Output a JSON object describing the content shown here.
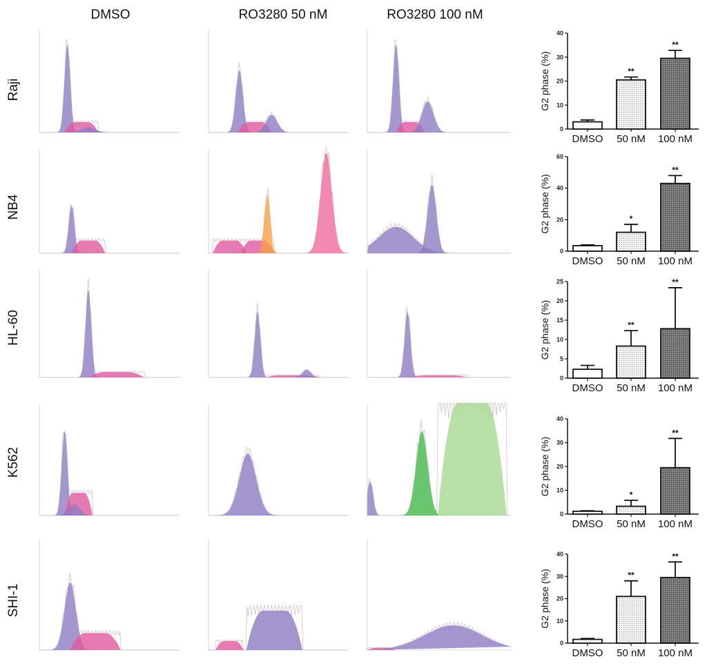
{
  "column_headers": [
    "DMSO",
    "RO3280 50 nM",
    "RO3280 100 nM"
  ],
  "row_labels": [
    "Raji",
    "NB4",
    "HL-60",
    "K562",
    "SHI-1"
  ],
  "colors": {
    "g1_peak": "#8e7cc3",
    "s_phase": "#e05aa0",
    "g2_peak_orange": "#f6a040",
    "aneuploid_pink": "#f06aa0",
    "green_peak": "#44b84a",
    "light_green": "#a8d890",
    "raw_trace": "#c8b8b8"
  },
  "chart_data": [
    {
      "type": "bar",
      "panel": "Raji",
      "categories": [
        "DMSO",
        "50 nM",
        "100 nM"
      ],
      "values": [
        3,
        20.5,
        29.5
      ],
      "errors": [
        0.8,
        1.2,
        3.3
      ],
      "significance": [
        "",
        "**",
        "**"
      ],
      "ylabel": "G2 phase (%)",
      "ylim": [
        0,
        40
      ],
      "yticks": [
        0,
        10,
        20,
        30,
        40
      ]
    },
    {
      "type": "bar",
      "panel": "NB4",
      "categories": [
        "DMSO",
        "50 nM",
        "100 nM"
      ],
      "values": [
        3.5,
        12,
        43
      ],
      "errors": [
        0.5,
        5,
        5
      ],
      "significance": [
        "",
        "*",
        "**"
      ],
      "ylabel": "G2 phase (%)",
      "ylim": [
        0,
        60
      ],
      "yticks": [
        0,
        20,
        40,
        60
      ]
    },
    {
      "type": "bar",
      "panel": "HL-60",
      "categories": [
        "DMSO",
        "50 nM",
        "100 nM"
      ],
      "values": [
        2.3,
        8.3,
        12.8
      ],
      "errors": [
        1,
        4,
        10.6
      ],
      "significance": [
        "",
        "**",
        "**"
      ],
      "ylabel": "G2 phase (%)",
      "ylim": [
        0,
        25
      ],
      "yticks": [
        0,
        5,
        10,
        15,
        20,
        25
      ]
    },
    {
      "type": "bar",
      "panel": "K562",
      "categories": [
        "DMSO",
        "50 nM",
        "100 nM"
      ],
      "values": [
        1.2,
        3.3,
        19.5
      ],
      "errors": [
        0.2,
        2.5,
        12.3
      ],
      "significance": [
        "",
        "*",
        "**"
      ],
      "ylabel": "G2 phase (%)",
      "ylim": [
        0,
        40
      ],
      "yticks": [
        0,
        10,
        20,
        30,
        40
      ]
    },
    {
      "type": "bar",
      "panel": "SHI-1",
      "categories": [
        "DMSO",
        "50 nM",
        "100 nM"
      ],
      "values": [
        1.7,
        21,
        29.5
      ],
      "errors": [
        0.4,
        7,
        7
      ],
      "significance": [
        "",
        "**",
        "**"
      ],
      "ylabel": "G2 phase (%)",
      "ylim": [
        0,
        40
      ],
      "yticks": [
        0,
        10,
        20,
        30,
        40
      ]
    }
  ]
}
